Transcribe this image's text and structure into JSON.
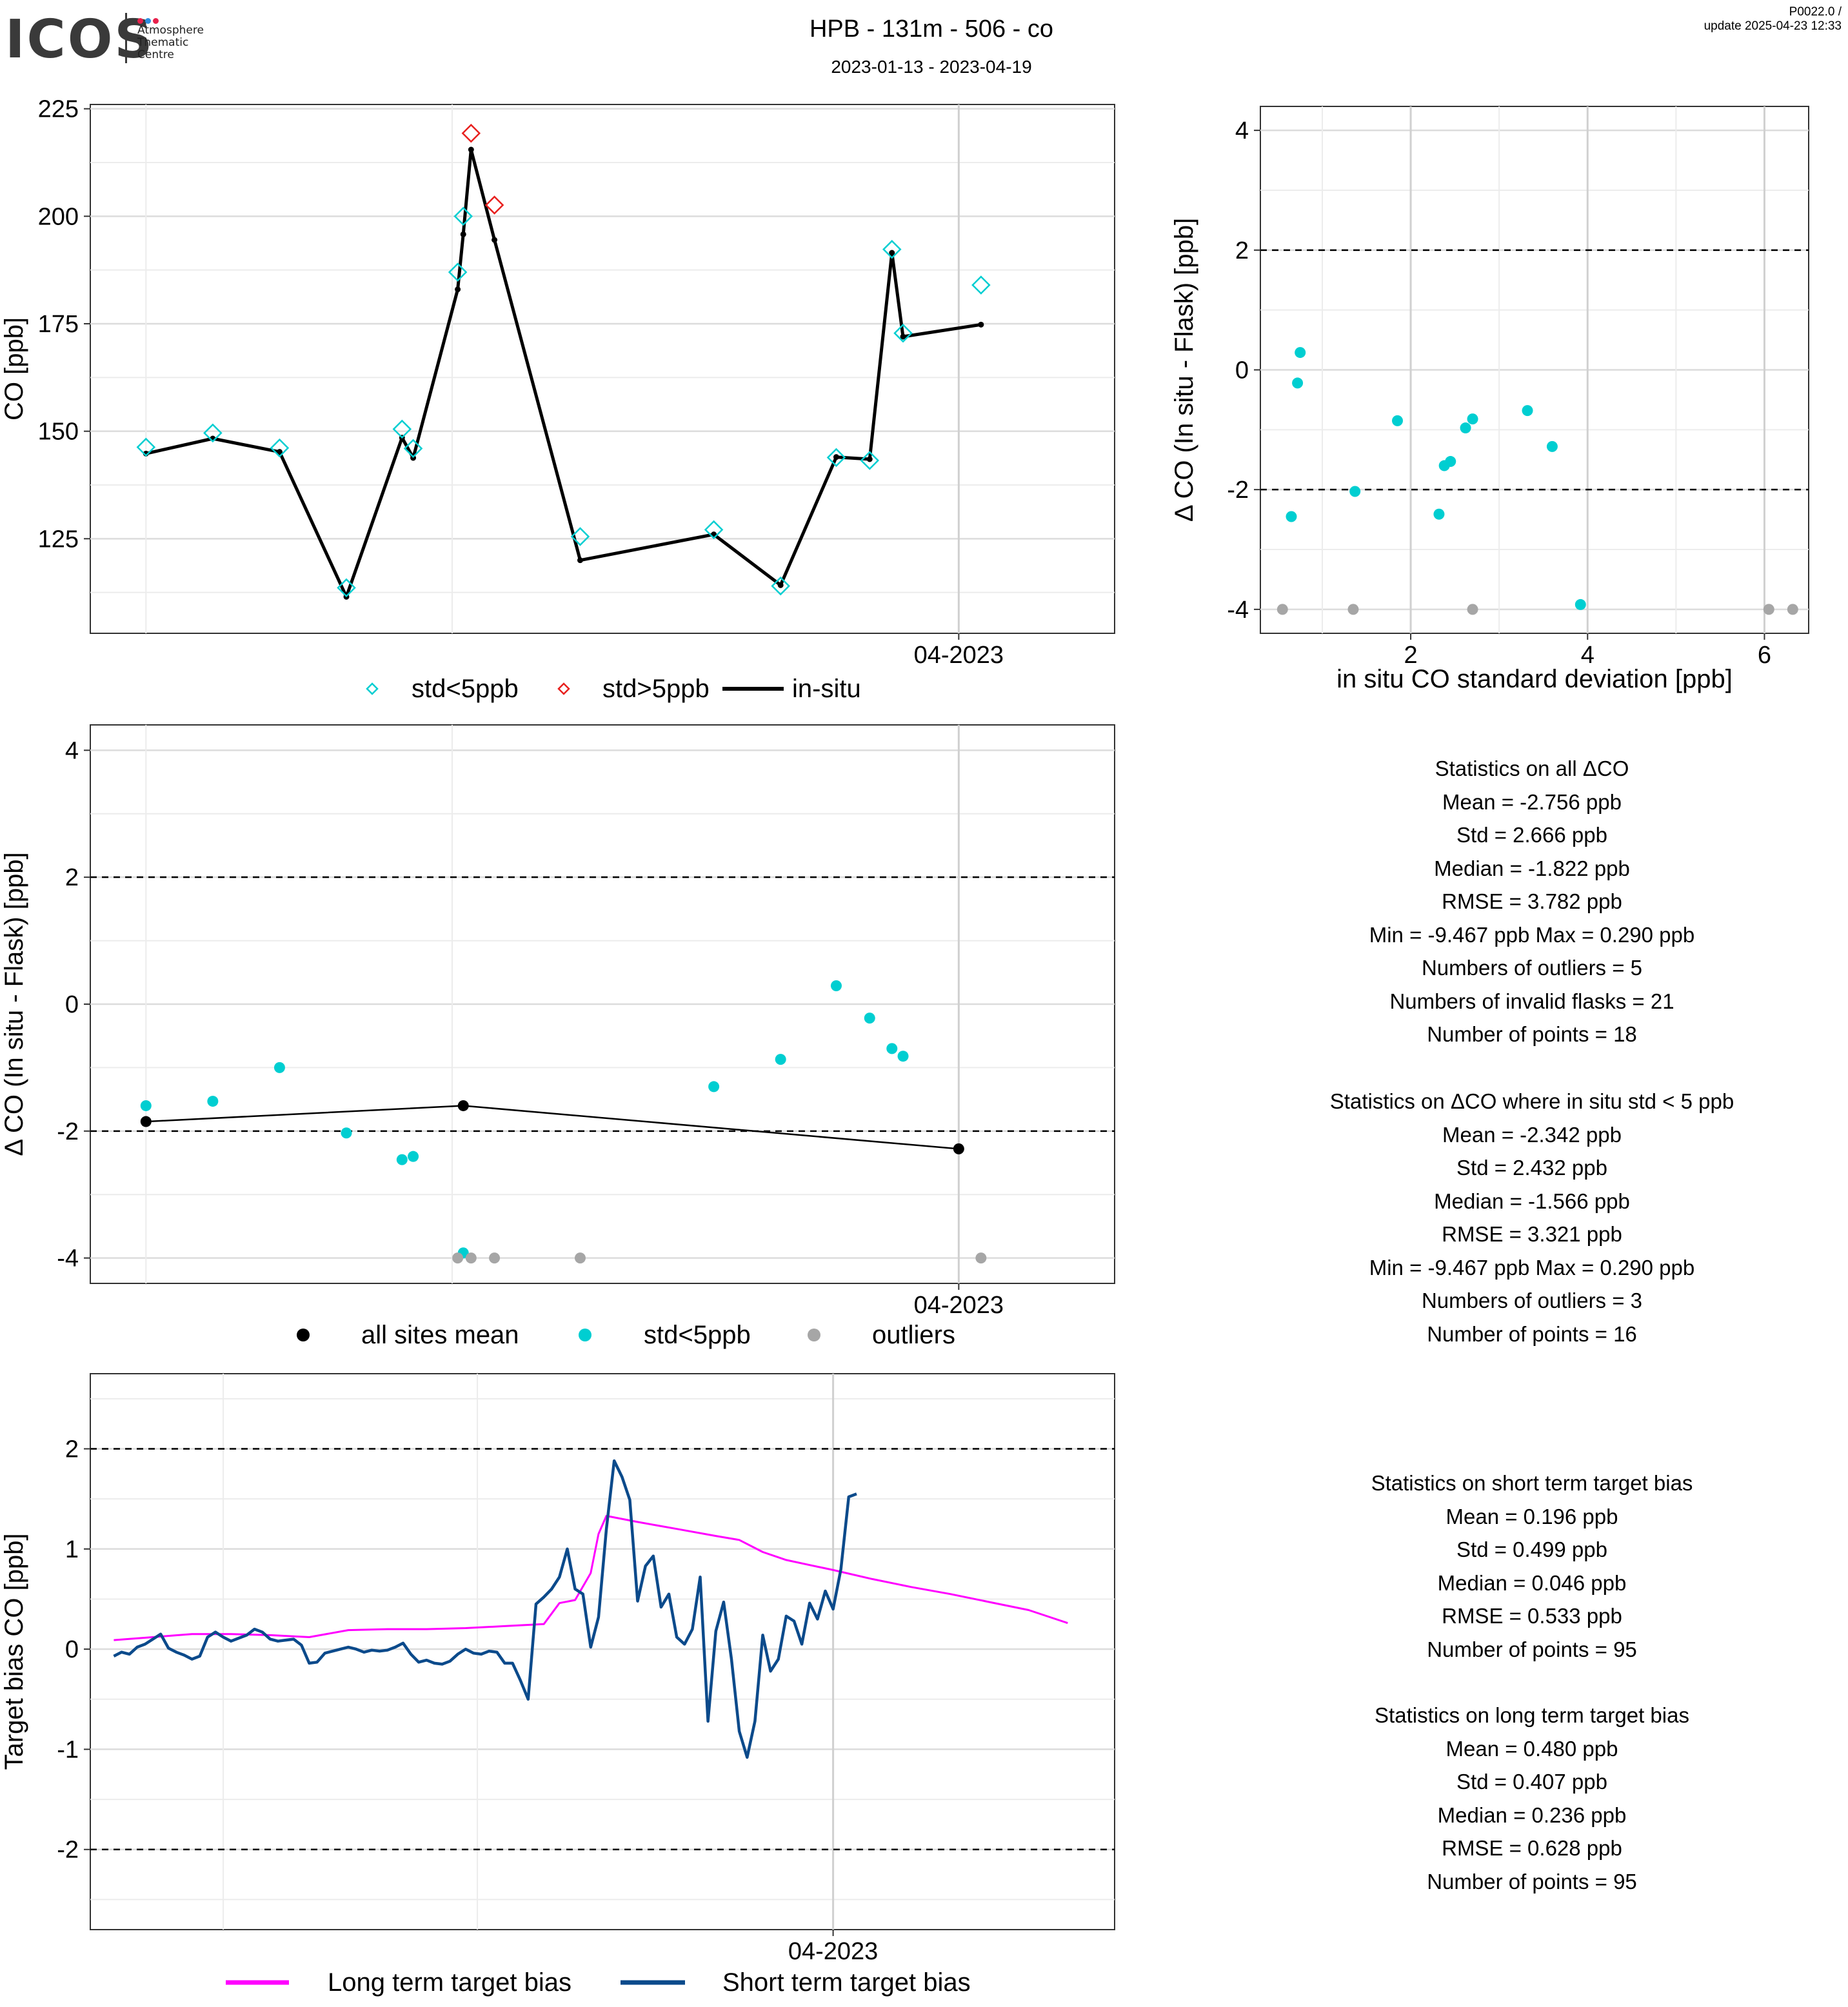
{
  "header": {
    "logo_text": "ICOS",
    "logo_sub": [
      "Atmosphere",
      "Thematic",
      "Centre"
    ],
    "title": "HPB - 131m - 506 - co",
    "subtitle": "2023-01-13 - 2023-04-19",
    "version_line1": "P0022.0 /",
    "version_line2": "update  2025-04-23 12:33"
  },
  "colors": {
    "cyan": "#00CED1",
    "red": "#E8201E",
    "black": "#000000",
    "grey": "#A6A6A6",
    "magenta": "#FF00FF",
    "navy": "#0B4A8B"
  },
  "chart_data": [
    {
      "id": "co_timeseries",
      "type": "line",
      "ylabel": "CO [ppb]",
      "xlabel": "",
      "x_tick_label": "04-2023",
      "ylim": [
        103,
        226
      ],
      "yticks": [
        125,
        150,
        175,
        200,
        225
      ],
      "grid": true,
      "legend": {
        "placement": "bottom",
        "items": [
          "std<5ppb",
          "std>5ppb",
          "in-situ"
        ]
      },
      "series": [
        {
          "name": "in-situ",
          "style": "line",
          "points": [
            [
              -73,
              144.8
            ],
            [
              -67,
              148.3
            ],
            [
              -61,
              145.2
            ],
            [
              -55,
              111.5
            ],
            [
              -50,
              148.5
            ],
            [
              -49,
              143.8
            ],
            [
              -45,
              183.0
            ],
            [
              -44.5,
              195.8
            ],
            [
              -43.8,
              215.5
            ],
            [
              -41.7,
              194.5
            ],
            [
              -34,
              120.0
            ],
            [
              -22,
              126.0
            ],
            [
              -16,
              114.2
            ],
            [
              -11,
              144.0
            ],
            [
              -8,
              143.5
            ],
            [
              -6,
              191.5
            ],
            [
              -5,
              172.0
            ],
            [
              2,
              174.8
            ]
          ]
        },
        {
          "name": "std<5ppb",
          "style": "diamond-open",
          "points": [
            [
              -73,
              146.3
            ],
            [
              -67,
              149.6
            ],
            [
              -61,
              146.1
            ],
            [
              -55,
              113.6
            ],
            [
              -50,
              150.5
            ],
            [
              -49,
              146.0
            ],
            [
              -45,
              187.0
            ],
            [
              -44.5,
              200.0
            ],
            [
              -34,
              125.5
            ],
            [
              -22,
              127.1
            ],
            [
              -16,
              114.0
            ],
            [
              -11,
              143.9
            ],
            [
              -8,
              143.2
            ],
            [
              -6,
              192.3
            ],
            [
              -5,
              172.8
            ],
            [
              2,
              184.0
            ]
          ]
        },
        {
          "name": "std>5ppb",
          "style": "diamond-open",
          "points": [
            [
              -43.8,
              219.3
            ],
            [
              -41.7,
              202.6
            ]
          ]
        }
      ]
    },
    {
      "id": "delta_vs_std",
      "type": "scatter",
      "xlabel": "in situ CO standard deviation [ppb]",
      "ylabel": "Δ CO (In situ - Flask) [ppb]",
      "xlim": [
        0.3,
        6.5
      ],
      "ylim": [
        -4.4,
        4.4
      ],
      "xticks": [
        2,
        4,
        6
      ],
      "yticks": [
        -4,
        -2,
        0,
        2,
        4
      ],
      "hlines": [
        -2,
        2
      ],
      "grid": true,
      "series": [
        {
          "name": "std<5ppb",
          "points": [
            [
              0.65,
              -2.45
            ],
            [
              0.72,
              -0.22
            ],
            [
              0.75,
              0.29
            ],
            [
              1.37,
              -2.03
            ],
            [
              1.85,
              -0.85
            ],
            [
              2.32,
              -2.41
            ],
            [
              2.38,
              -1.6
            ],
            [
              2.45,
              -1.53
            ],
            [
              2.62,
              -0.97
            ],
            [
              2.7,
              -0.82
            ],
            [
              3.32,
              -0.68
            ],
            [
              3.6,
              -1.28
            ],
            [
              3.92,
              -3.92
            ]
          ]
        },
        {
          "name": "outliers",
          "points": [
            [
              0.55,
              -4.0
            ],
            [
              1.35,
              -4.0
            ],
            [
              2.7,
              -4.0
            ],
            [
              6.05,
              -4.0
            ],
            [
              6.32,
              -4.0
            ]
          ]
        }
      ]
    },
    {
      "id": "delta_timeseries",
      "type": "scatter",
      "ylabel": "Δ CO (In situ - Flask) [ppb]",
      "xlabel": "",
      "x_tick_label": "04-2023",
      "ylim": [
        -4.4,
        4.4
      ],
      "yticks": [
        -4,
        -2,
        0,
        2,
        4
      ],
      "hlines": [
        -2,
        2
      ],
      "grid": true,
      "legend": {
        "placement": "bottom",
        "items": [
          "all sites mean",
          "std<5ppb",
          "outliers"
        ]
      },
      "series": [
        {
          "name": "all sites mean",
          "style": "line+points",
          "points": [
            [
              -73,
              -1.85
            ],
            [
              -44.5,
              -1.6
            ],
            [
              0,
              -2.28
            ]
          ]
        },
        {
          "name": "std<5ppb",
          "points": [
            [
              -73,
              -1.6
            ],
            [
              -67,
              -1.53
            ],
            [
              -61,
              -1.0
            ],
            [
              -55,
              -2.03
            ],
            [
              -50,
              -2.45
            ],
            [
              -49,
              -2.4
            ],
            [
              -44.5,
              -3.92
            ],
            [
              -22,
              -1.3
            ],
            [
              -16,
              -0.87
            ],
            [
              -11,
              0.29
            ],
            [
              -8,
              -0.22
            ],
            [
              -6,
              -0.7
            ],
            [
              -5,
              -0.82
            ]
          ]
        },
        {
          "name": "outliers",
          "points": [
            [
              -45,
              -4.0
            ],
            [
              -43.8,
              -4.0
            ],
            [
              -41.7,
              -4.0
            ],
            [
              -34,
              -4.0
            ],
            [
              2,
              -4.0
            ]
          ]
        }
      ]
    },
    {
      "id": "target_bias",
      "type": "line",
      "ylabel": "Target bias CO [ppb]",
      "xlabel": "",
      "x_tick_label": "04-2023",
      "ylim": [
        -2.8,
        2.75
      ],
      "yticks": [
        -2,
        -1,
        0,
        1,
        2
      ],
      "hlines": [
        -2,
        2
      ],
      "grid": true,
      "legend": {
        "placement": "bottom",
        "items": [
          "Long term target bias",
          "Short term target bias"
        ]
      },
      "series": [
        {
          "name": "Long term target bias",
          "points": [
            [
              -92,
              0.09
            ],
            [
              -87,
              0.12
            ],
            [
              -82,
              0.15
            ],
            [
              -77,
              0.15
            ],
            [
              -72,
              0.14
            ],
            [
              -67,
              0.12
            ],
            [
              -62,
              0.19
            ],
            [
              -57,
              0.2
            ],
            [
              -52,
              0.2
            ],
            [
              -47,
              0.21
            ],
            [
              -42,
              0.23
            ],
            [
              -37,
              0.25
            ],
            [
              -35,
              0.46
            ],
            [
              -33,
              0.49
            ],
            [
              -31,
              0.76
            ],
            [
              -30,
              1.15
            ],
            [
              -29,
              1.33
            ],
            [
              -25,
              1.27
            ],
            [
              -20,
              1.2
            ],
            [
              -15,
              1.13
            ],
            [
              -12,
              1.09
            ],
            [
              -9,
              0.97
            ],
            [
              -6,
              0.89
            ],
            [
              -3,
              0.84
            ],
            [
              0,
              0.79
            ],
            [
              5,
              0.7
            ],
            [
              10,
              0.62
            ],
            [
              15,
              0.55
            ],
            [
              20,
              0.47
            ],
            [
              25,
              0.39
            ],
            [
              30,
              0.26
            ]
          ]
        },
        {
          "name": "Short term target bias",
          "points": [
            [
              -92,
              -0.07
            ],
            [
              -91,
              -0.03
            ],
            [
              -90,
              -0.05
            ],
            [
              -89,
              0.02
            ],
            [
              -88,
              0.05
            ],
            [
              -87,
              0.1
            ],
            [
              -86,
              0.15
            ],
            [
              -85,
              0.01
            ],
            [
              -84,
              -0.03
            ],
            [
              -83,
              -0.06
            ],
            [
              -82,
              -0.1
            ],
            [
              -81,
              -0.07
            ],
            [
              -80,
              0.12
            ],
            [
              -79,
              0.17
            ],
            [
              -78,
              0.12
            ],
            [
              -77,
              0.08
            ],
            [
              -76,
              0.11
            ],
            [
              -75,
              0.14
            ],
            [
              -74,
              0.2
            ],
            [
              -73,
              0.17
            ],
            [
              -72,
              0.1
            ],
            [
              -71,
              0.08
            ],
            [
              -70,
              0.09
            ],
            [
              -69,
              0.1
            ],
            [
              -68,
              0.04
            ],
            [
              -67,
              -0.14
            ],
            [
              -66,
              -0.13
            ],
            [
              -65,
              -0.04
            ],
            [
              -64,
              -0.02
            ],
            [
              -63,
              0.0
            ],
            [
              -62,
              0.02
            ],
            [
              -61,
              0.0
            ],
            [
              -60,
              -0.03
            ],
            [
              -59,
              -0.01
            ],
            [
              -58,
              -0.02
            ],
            [
              -57,
              -0.01
            ],
            [
              -56,
              0.02
            ],
            [
              -55,
              0.06
            ],
            [
              -54,
              -0.05
            ],
            [
              -53,
              -0.13
            ],
            [
              -52,
              -0.11
            ],
            [
              -51,
              -0.14
            ],
            [
              -50,
              -0.15
            ],
            [
              -49,
              -0.12
            ],
            [
              -48,
              -0.05
            ],
            [
              -47,
              0.0
            ],
            [
              -46,
              -0.04
            ],
            [
              -45,
              -0.05
            ],
            [
              -44,
              -0.02
            ],
            [
              -43,
              -0.03
            ],
            [
              -42,
              -0.14
            ],
            [
              -41,
              -0.14
            ],
            [
              -40,
              -0.31
            ],
            [
              -39,
              -0.5
            ],
            [
              -38,
              0.45
            ],
            [
              -37,
              0.52
            ],
            [
              -36,
              0.6
            ],
            [
              -35,
              0.72
            ],
            [
              -34,
              1.0
            ],
            [
              -33,
              0.6
            ],
            [
              -32,
              0.55
            ],
            [
              -31,
              0.02
            ],
            [
              -30,
              0.32
            ],
            [
              -29,
              1.2
            ],
            [
              -28,
              1.88
            ],
            [
              -27,
              1.72
            ],
            [
              -26,
              1.49
            ],
            [
              -25,
              0.48
            ],
            [
              -24,
              0.83
            ],
            [
              -23,
              0.93
            ],
            [
              -22,
              0.42
            ],
            [
              -21,
              0.55
            ],
            [
              -20,
              0.12
            ],
            [
              -19,
              0.05
            ],
            [
              -18,
              0.2
            ],
            [
              -17,
              0.72
            ],
            [
              -16,
              -0.72
            ],
            [
              -15,
              0.18
            ],
            [
              -14,
              0.47
            ],
            [
              -13,
              -0.1
            ],
            [
              -12,
              -0.82
            ],
            [
              -11,
              -1.08
            ],
            [
              -10,
              -0.72
            ],
            [
              -9,
              0.14
            ],
            [
              -8,
              -0.22
            ],
            [
              -7,
              -0.1
            ],
            [
              -6,
              0.33
            ],
            [
              -5,
              0.28
            ],
            [
              -4,
              0.05
            ],
            [
              -3,
              0.46
            ],
            [
              -2,
              0.3
            ],
            [
              -1,
              0.58
            ],
            [
              0,
              0.4
            ],
            [
              1,
              0.8
            ],
            [
              2,
              1.52
            ],
            [
              3,
              1.55
            ]
          ]
        }
      ]
    }
  ],
  "stats_all": {
    "lines": [
      "Statistics on all ΔCO",
      "Mean =  -2.756 ppb",
      "Std =  2.666 ppb",
      "Median =  -1.822 ppb",
      "RMSE =  3.782 ppb",
      "Min =  -9.467 ppb Max =  0.290 ppb",
      "Numbers of outliers =  5",
      "Numbers of invalid flasks =  21",
      "Number of points =  18"
    ]
  },
  "stats_lowstd": {
    "lines": [
      "Statistics on ΔCO where in situ std < 5 ppb",
      "Mean =  -2.342 ppb",
      "Std =  2.432 ppb",
      "Median =  -1.566 ppb",
      "RMSE =  3.321 ppb",
      "Min =  -9.467 ppb Max =  0.290 ppb",
      "Numbers of outliers =  3",
      "Number of points =  16"
    ]
  },
  "stats_short": {
    "lines": [
      "Statistics on short term target bias",
      "Mean =  0.196 ppb",
      "Std =  0.499 ppb",
      "Median =  0.046 ppb",
      "RMSE =  0.533 ppb",
      "Number of points =  95"
    ]
  },
  "stats_long": {
    "lines": [
      "Statistics on long term target bias",
      "Mean =  0.480 ppb",
      "Std =  0.407 ppb",
      "Median =  0.236 ppb",
      "RMSE =  0.628 ppb",
      "Number of points =  95"
    ]
  }
}
